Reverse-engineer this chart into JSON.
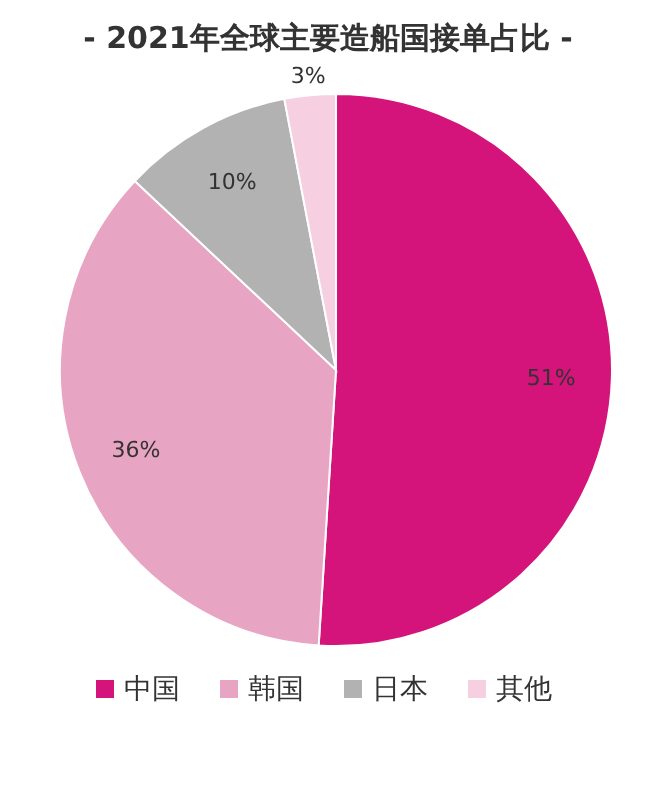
{
  "chart_data": {
    "type": "pie",
    "title": "- 2021年全球主要造船国接单占比 -",
    "categories": [
      "中国",
      "韩国",
      "日本",
      "其他"
    ],
    "values": [
      51,
      36,
      10,
      3
    ],
    "colors": [
      "#d4147a",
      "#e8a5c3",
      "#b2b2b2",
      "#f6cfe0"
    ],
    "value_labels": [
      "51%",
      "36%",
      "10%",
      "3%"
    ],
    "legend": "bottom"
  }
}
